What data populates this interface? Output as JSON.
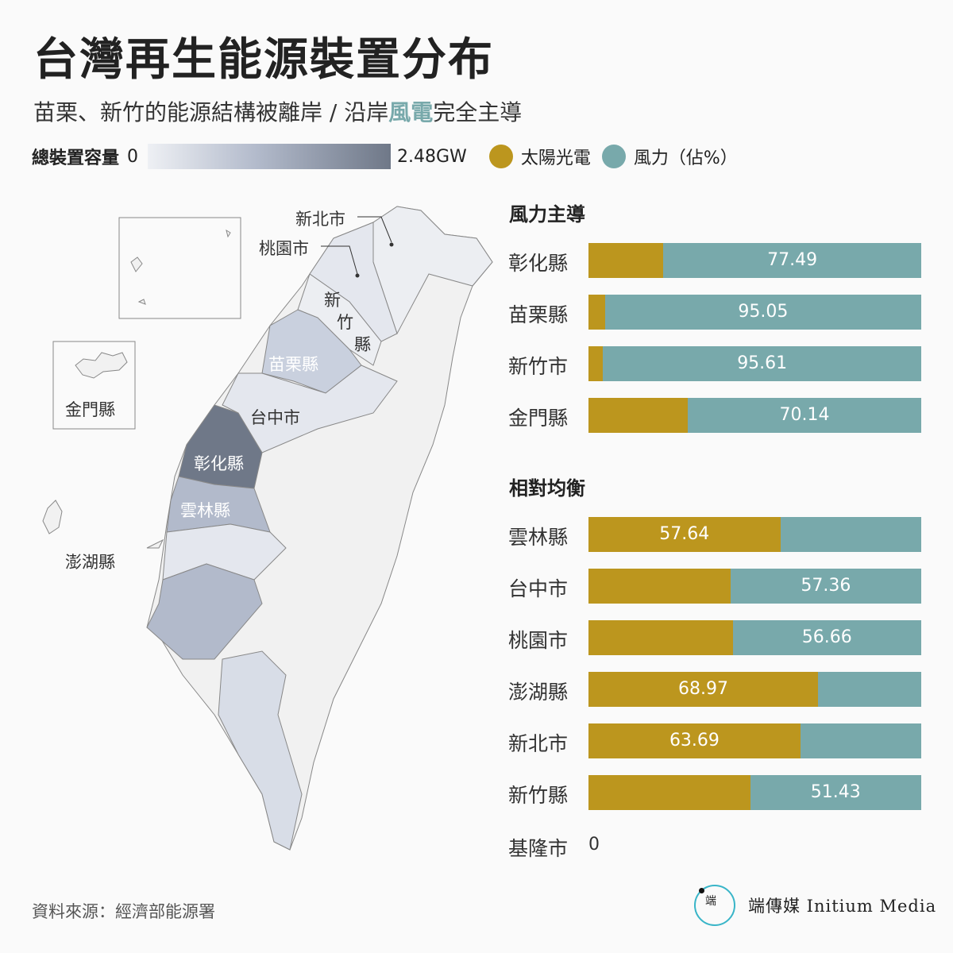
{
  "title": "台灣再生能源裝置分布",
  "subtitle_pre": "苗栗、新竹的能源結構被離岸 / 沿岸",
  "subtitle_hl": "風電",
  "subtitle_post": "完全主導",
  "legend": {
    "capacity_label": "總裝置容量",
    "min": "0",
    "max": "2.48GW",
    "solar": "太陽光電",
    "wind": "風力（佔%）"
  },
  "colors": {
    "solar": "#bc961e",
    "wind": "#78a9ab"
  },
  "map_labels": {
    "xinbei": "新北市",
    "taoyuan": "桃園市",
    "hsinchu_county": [
      "新",
      "竹",
      "縣"
    ],
    "miaoli": "苗栗縣",
    "taichung": "台中市",
    "changhua": "彰化縣",
    "yunlin": "雲林縣",
    "penghu": "澎湖縣",
    "kinmen": "金門縣"
  },
  "chart_data": {
    "type": "bar",
    "stacked": true,
    "unit": "%",
    "series_names": [
      "太陽光電",
      "風力"
    ],
    "groups": [
      {
        "title": "風力主導",
        "rows": [
          {
            "name": "彰化縣",
            "solar": 22.51,
            "wind": 77.49,
            "label": "77.49",
            "label_on": "wind"
          },
          {
            "name": "苗栗縣",
            "solar": 4.95,
            "wind": 95.05,
            "label": "95.05",
            "label_on": "wind"
          },
          {
            "name": "新竹市",
            "solar": 4.39,
            "wind": 95.61,
            "label": "95.61",
            "label_on": "wind"
          },
          {
            "name": "金門縣",
            "solar": 29.86,
            "wind": 70.14,
            "label": "70.14",
            "label_on": "wind"
          }
        ]
      },
      {
        "title": "相對均衡",
        "rows": [
          {
            "name": "雲林縣",
            "solar": 57.64,
            "wind": 42.36,
            "label": "57.64",
            "label_on": "solar"
          },
          {
            "name": "台中市",
            "solar": 42.64,
            "wind": 57.36,
            "label": "57.36",
            "label_on": "wind"
          },
          {
            "name": "桃園市",
            "solar": 43.34,
            "wind": 56.66,
            "label": "56.66",
            "label_on": "wind"
          },
          {
            "name": "澎湖縣",
            "solar": 68.97,
            "wind": 31.03,
            "label": "68.97",
            "label_on": "solar"
          },
          {
            "name": "新北市",
            "solar": 63.69,
            "wind": 36.31,
            "label": "63.69",
            "label_on": "solar"
          },
          {
            "name": "新竹縣",
            "solar": 48.57,
            "wind": 51.43,
            "label": "51.43",
            "label_on": "wind"
          },
          {
            "name": "基隆市",
            "solar": 0,
            "wind": 0,
            "label": "0",
            "label_on": "none"
          }
        ]
      }
    ]
  },
  "source": "資料來源：經濟部能源署",
  "logo": {
    "brand": "端傳媒 Initium Media",
    "mark": "端"
  }
}
